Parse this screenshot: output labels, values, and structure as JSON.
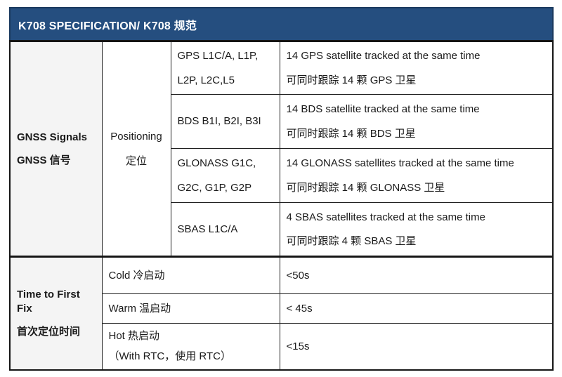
{
  "header": {
    "title": "K708 SPECIFICATION/ K708 规范"
  },
  "colors": {
    "header_bg": "#254E7F",
    "header_text": "#FFFFFF",
    "label_column_bg": "#F4F4F4",
    "border": "#1F1F1F",
    "text": "#1A1A1A"
  },
  "gnss": {
    "label_en": "GNSS Signals",
    "label_zh": "GNSS 信号",
    "positioning_en": "Positioning",
    "positioning_zh": "定位",
    "rows": [
      {
        "signal_lines": [
          "GPS L1C/A, L1P,",
          "L2P, L2C,L5"
        ],
        "desc_en": "14 GPS satellite tracked at the same time",
        "desc_zh": "可同时跟踪 14 颗 GPS 卫星"
      },
      {
        "signal_lines": [
          "BDS B1I, B2I, B3I"
        ],
        "desc_en": "14 BDS satellite tracked at the same time",
        "desc_zh": "可同时跟踪 14 颗 BDS 卫星"
      },
      {
        "signal_lines": [
          "GLONASS G1C,",
          "G2C, G1P, G2P"
        ],
        "desc_en": "14 GLONASS satellites tracked at the same time",
        "desc_zh": "可同时跟踪 14 颗 GLONASS 卫星"
      },
      {
        "signal_lines": [
          "SBAS L1C/A"
        ],
        "desc_en": "4 SBAS satellites tracked at the same time",
        "desc_zh": "可同时跟踪 4 颗 SBAS 卫星"
      }
    ]
  },
  "ttff": {
    "label_en": "Time to First Fix",
    "label_zh": "首次定位时间",
    "rows": [
      {
        "mode_lines": [
          "Cold 冷启动"
        ],
        "value": "<50s"
      },
      {
        "mode_lines": [
          "Warm 温启动"
        ],
        "value": "< 45s"
      },
      {
        "mode_lines": [
          "Hot 热启动",
          "（With RTC，使用  RTC）"
        ],
        "value": "<15s"
      }
    ]
  }
}
